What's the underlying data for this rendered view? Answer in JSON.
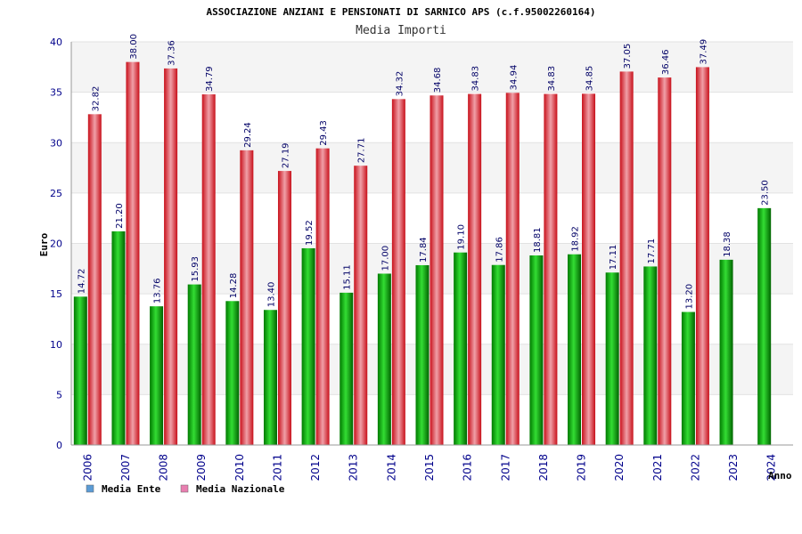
{
  "chart_data": {
    "type": "bar",
    "title": "ASSOCIAZIONE ANZIANI E PENSIONATI DI SARNICO APS (c.f.95002260164)",
    "subtitle": "Media Importi",
    "xlabel": "Anno",
    "ylabel": "Euro",
    "ylim": [
      0,
      40
    ],
    "yticks": [
      0,
      5,
      10,
      15,
      20,
      25,
      30,
      35,
      40
    ],
    "grid": true,
    "legend_position": "bottom-left",
    "categories": [
      "2006",
      "2007",
      "2008",
      "2009",
      "2010",
      "2011",
      "2012",
      "2013",
      "2014",
      "2015",
      "2016",
      "2017",
      "2018",
      "2019",
      "2020",
      "2021",
      "2022",
      "2023",
      "2024"
    ],
    "series": [
      {
        "name": "Media Ente",
        "legend_color": "#5b9bd5",
        "bar_color": "#00b000",
        "values": [
          14.72,
          21.2,
          13.76,
          15.93,
          14.28,
          13.4,
          19.52,
          15.11,
          17.0,
          17.84,
          19.1,
          17.86,
          18.81,
          18.92,
          17.11,
          17.71,
          13.2,
          18.38,
          23.5
        ],
        "labels": [
          "14.72",
          "21.20",
          "13.76",
          "15.93",
          "14.28",
          "13.40",
          "19.52",
          "15.11",
          "17.00",
          "17.84",
          "19.10",
          "17.86",
          "18.81",
          "18.92",
          "17.11",
          "17.71",
          "13.20",
          "18.38",
          "23.50"
        ]
      },
      {
        "name": "Media Nazionale",
        "legend_color": "#e87fb0",
        "bar_color": "#e8202a",
        "values": [
          32.82,
          38.0,
          37.36,
          34.79,
          29.24,
          27.19,
          29.43,
          27.71,
          34.32,
          34.68,
          34.83,
          34.94,
          34.83,
          34.85,
          37.05,
          36.46,
          37.49,
          null,
          null
        ],
        "labels": [
          "32.82",
          "38.00",
          "37.36",
          "34.79",
          "29.24",
          "27.19",
          "29.43",
          "27.71",
          "34.32",
          "34.68",
          "34.83",
          "34.94",
          "34.83",
          "34.85",
          "37.05",
          "36.46",
          "37.49",
          "",
          ""
        ]
      }
    ]
  }
}
